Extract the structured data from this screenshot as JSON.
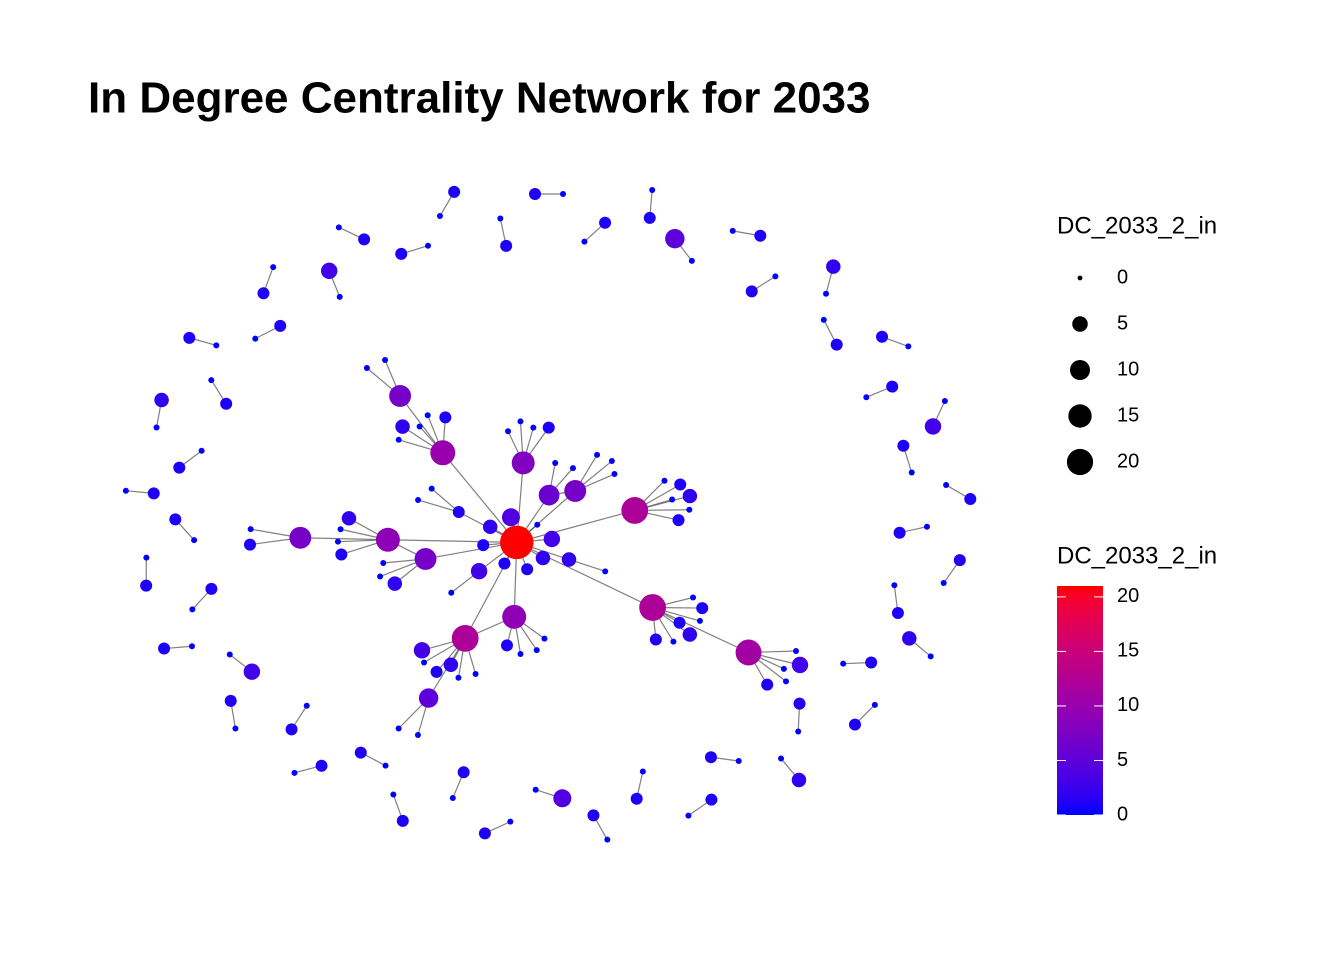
{
  "chart_data": {
    "type": "network",
    "title": "In Degree Centrality Network for 2033",
    "size_legend_title": "DC_2033_2_in",
    "color_legend_title": "DC_2033_2_in",
    "nodes": [
      21,
      12,
      12,
      12,
      11,
      10,
      9,
      9,
      8,
      7,
      7,
      7,
      7,
      6,
      5,
      3,
      2,
      2,
      1,
      1,
      4,
      2,
      1,
      3,
      1,
      2,
      1,
      1,
      3,
      1,
      2,
      1,
      1,
      2,
      1,
      1,
      3,
      2,
      1,
      1,
      2,
      1,
      1,
      1,
      2,
      0,
      0,
      0,
      0,
      0,
      0,
      0,
      0,
      0,
      0,
      0,
      0,
      0,
      0,
      0,
      0,
      0,
      0,
      0,
      0,
      0,
      0,
      0,
      0,
      0,
      0,
      0,
      0,
      0,
      0,
      0,
      0,
      0,
      0,
      0,
      0,
      0,
      0,
      0,
      0,
      0,
      1,
      0,
      1,
      0,
      1,
      0,
      5,
      0,
      1,
      0,
      1,
      0,
      2,
      0,
      1,
      0,
      1,
      0,
      1,
      0,
      3,
      0,
      1,
      0,
      1,
      0,
      1,
      0,
      1,
      0,
      1,
      0,
      2,
      0,
      1,
      0,
      1,
      0,
      1,
      0,
      2,
      0,
      1,
      0,
      1,
      0,
      1,
      0,
      1,
      0,
      4,
      0,
      1,
      0,
      1,
      0,
      1,
      0,
      1,
      0,
      1,
      0,
      1,
      0,
      1,
      0,
      3,
      0,
      1,
      0,
      1,
      0,
      1,
      0,
      1,
      0,
      1,
      0,
      1,
      0,
      2,
      0,
      1,
      0,
      1,
      0,
      1,
      0,
      1,
      0,
      3,
      0,
      1,
      0,
      1,
      0,
      1,
      0,
      1
    ],
    "edges": [
      [
        1,
        0
      ],
      [
        2,
        0
      ],
      [
        5,
        0
      ],
      [
        6,
        0
      ],
      [
        7,
        0
      ],
      [
        9,
        0
      ],
      [
        12,
        0
      ],
      [
        13,
        0
      ],
      [
        3,
        0
      ],
      [
        8,
        0
      ],
      [
        15,
        0
      ],
      [
        16,
        0
      ],
      [
        17,
        0
      ],
      [
        18,
        0
      ],
      [
        19,
        0
      ],
      [
        20,
        0
      ],
      [
        21,
        0
      ],
      [
        22,
        0
      ],
      [
        23,
        0
      ],
      [
        24,
        0
      ],
      [
        45,
        0
      ],
      [
        25,
        1
      ],
      [
        26,
        1
      ],
      [
        27,
        1
      ],
      [
        46,
        1
      ],
      [
        47,
        1
      ],
      [
        48,
        1
      ],
      [
        28,
        2
      ],
      [
        29,
        2
      ],
      [
        30,
        2
      ],
      [
        49,
        2
      ],
      [
        50,
        2
      ],
      [
        51,
        2
      ],
      [
        14,
        2
      ],
      [
        31,
        3
      ],
      [
        32,
        3
      ],
      [
        33,
        3
      ],
      [
        34,
        3
      ],
      [
        52,
        3
      ],
      [
        53,
        3
      ],
      [
        54,
        3
      ],
      [
        4,
        3
      ],
      [
        35,
        4
      ],
      [
        36,
        4
      ],
      [
        55,
        4
      ],
      [
        56,
        4
      ],
      [
        57,
        4
      ],
      [
        37,
        5
      ],
      [
        38,
        5
      ],
      [
        58,
        5
      ],
      [
        59,
        5
      ],
      [
        60,
        5
      ],
      [
        11,
        5
      ],
      [
        39,
        6
      ],
      [
        61,
        6
      ],
      [
        62,
        6
      ],
      [
        63,
        6
      ],
      [
        40,
        7
      ],
      [
        41,
        7
      ],
      [
        64,
        7
      ],
      [
        65,
        7
      ],
      [
        10,
        7
      ],
      [
        42,
        8
      ],
      [
        66,
        8
      ],
      [
        67,
        8
      ],
      [
        68,
        8
      ],
      [
        69,
        9
      ],
      [
        70,
        9
      ],
      [
        71,
        9
      ],
      [
        43,
        10
      ],
      [
        72,
        10
      ],
      [
        73,
        11
      ],
      [
        74,
        11
      ],
      [
        44,
        12
      ],
      [
        75,
        12
      ],
      [
        76,
        12
      ],
      [
        77,
        13
      ],
      [
        78,
        13
      ],
      [
        79,
        14
      ],
      [
        80,
        14
      ],
      [
        81,
        15
      ],
      [
        82,
        16
      ],
      [
        83,
        19
      ],
      [
        84,
        19
      ],
      [
        2,
        6
      ],
      [
        9,
        13
      ],
      [
        12,
        7
      ],
      [
        85,
        86
      ],
      [
        87,
        88
      ],
      [
        89,
        90
      ],
      [
        91,
        92
      ],
      [
        93,
        94
      ],
      [
        95,
        96
      ],
      [
        97,
        98
      ],
      [
        99,
        100
      ],
      [
        101,
        102
      ],
      [
        103,
        104
      ],
      [
        105,
        106
      ],
      [
        107,
        108
      ],
      [
        109,
        110
      ],
      [
        111,
        112
      ],
      [
        113,
        114
      ],
      [
        115,
        116
      ],
      [
        117,
        118
      ],
      [
        119,
        120
      ],
      [
        121,
        122
      ],
      [
        123,
        124
      ],
      [
        125,
        126
      ],
      [
        127,
        128
      ],
      [
        129,
        130
      ],
      [
        131,
        132
      ],
      [
        133,
        134
      ],
      [
        135,
        136
      ],
      [
        137,
        138
      ],
      [
        139,
        140
      ],
      [
        141,
        142
      ],
      [
        143,
        144
      ],
      [
        145,
        146
      ],
      [
        147,
        148
      ],
      [
        149,
        150
      ],
      [
        151,
        152
      ],
      [
        153,
        154
      ],
      [
        155,
        156
      ],
      [
        157,
        158
      ],
      [
        159,
        160
      ],
      [
        161,
        162
      ],
      [
        163,
        164
      ],
      [
        165,
        166
      ],
      [
        167,
        168
      ],
      [
        169,
        170
      ],
      [
        171,
        172
      ],
      [
        173,
        174
      ],
      [
        175,
        176
      ],
      [
        177,
        178
      ],
      [
        179,
        180
      ],
      [
        181,
        182
      ],
      [
        183,
        184
      ]
    ],
    "size_breaks": [
      0,
      5,
      10,
      15,
      20
    ],
    "colorbar_lim": [
      0,
      21
    ],
    "colorbar_ticks": [
      0,
      5,
      10,
      15,
      20
    ],
    "low_color": "#0000ff",
    "high_color": "#ff0000",
    "edge_color": "#555555"
  }
}
